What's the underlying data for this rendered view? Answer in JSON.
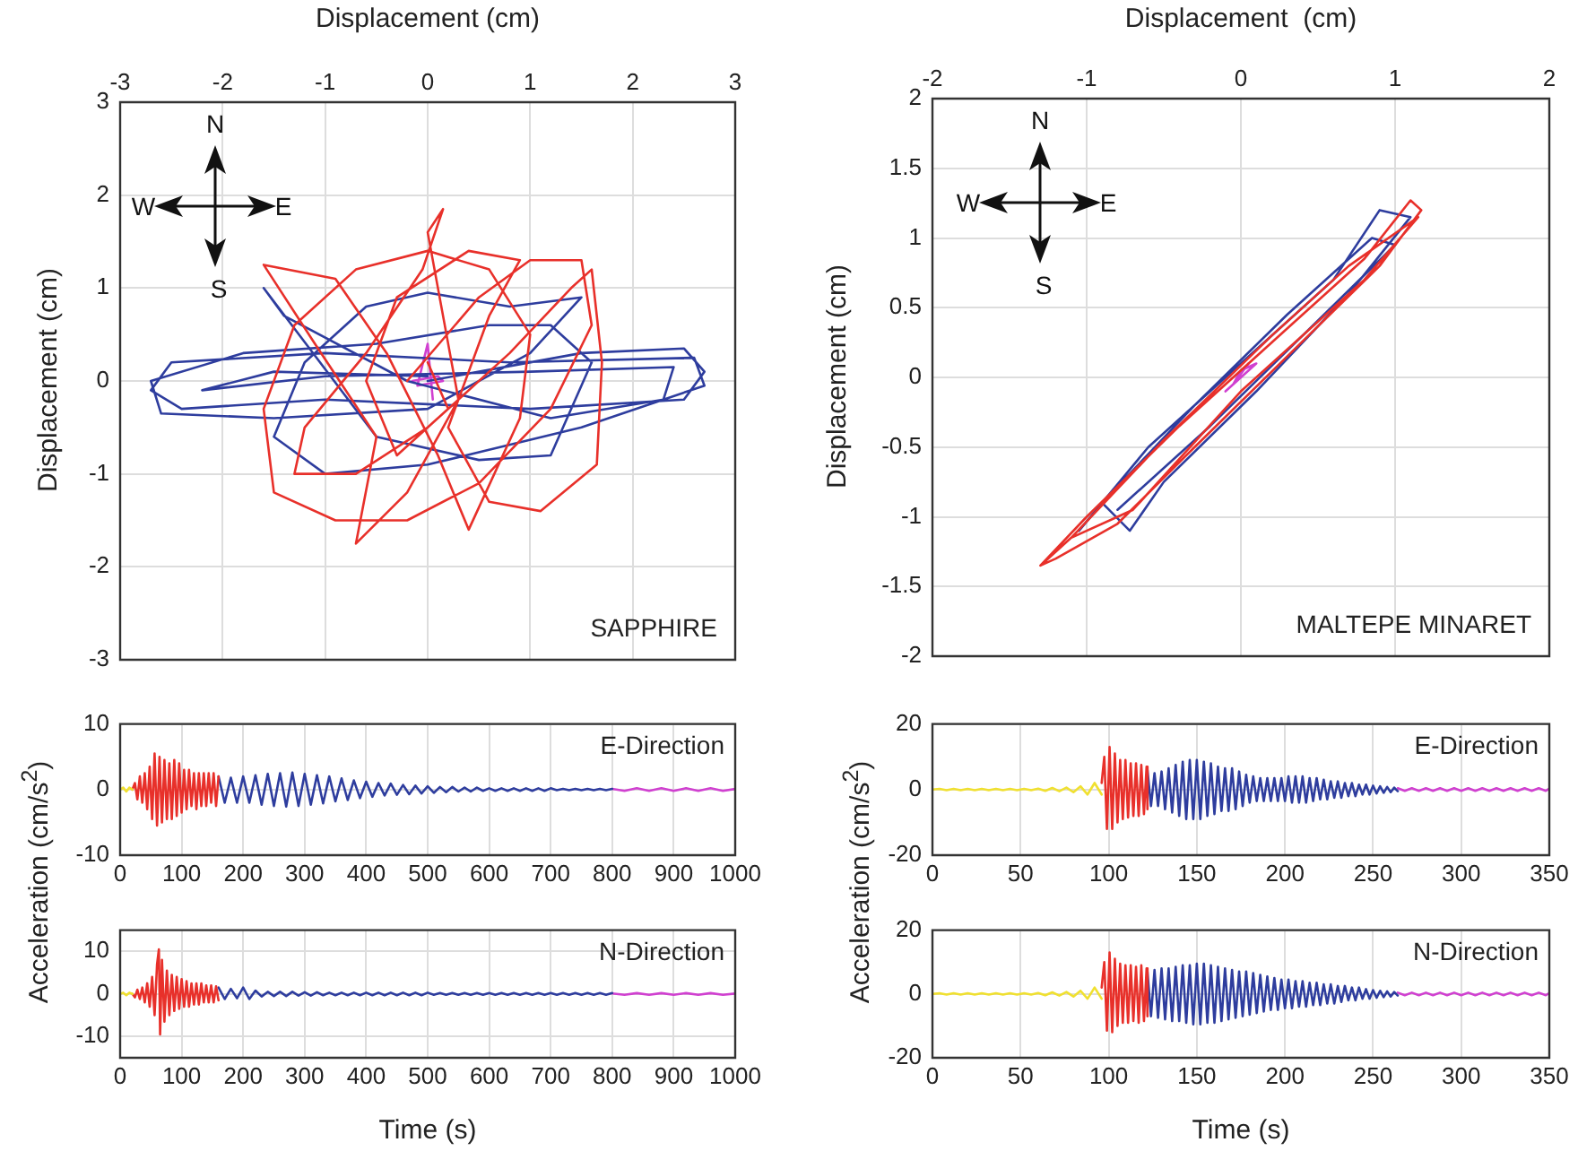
{
  "chart_data": [
    {
      "type": "line",
      "xlabel": "Displacement (cm)",
      "ylabel": "Displacement  (cm)",
      "xlim": [
        -3,
        3
      ],
      "xticks": [
        -3,
        -2,
        -1,
        0,
        1,
        2,
        3
      ],
      "ylim": [
        -3,
        3
      ],
      "yticks": [
        -3,
        -2,
        -1,
        0,
        1,
        2,
        3
      ],
      "grid": true,
      "annotations": [
        "SAPPHIRE",
        "N",
        "S",
        "W",
        "E"
      ],
      "series": [
        {
          "color": "#e8302a",
          "x": [
            -0.2,
            0.5,
            1.0,
            1.5,
            1.6,
            1.2,
            0.5,
            -0.2,
            -0.9,
            -1.5,
            -1.6,
            -1.3,
            -0.7,
            0.0,
            0.6,
            1.0,
            0.9,
            0.4,
            0.1,
            -0.4,
            -0.9,
            -1.6,
            -1.1,
            -0.5,
            -0.7,
            -0.2,
            0.3,
            0.0,
            0.15,
            -0.05,
            -0.6,
            -1.2,
            -1.3,
            -0.7,
            0.0,
            0.8,
            1.4,
            1.6,
            1.7,
            1.65,
            1.1,
            0.6,
            0.2,
            0.6,
            0.9,
            0.4,
            -0.3,
            -0.6,
            -0.3,
            0.2,
            0.0
          ],
          "values": [
            0.0,
            0.9,
            1.3,
            1.3,
            0.6,
            -0.3,
            -1.1,
            -1.5,
            -1.5,
            -1.2,
            -0.3,
            0.6,
            1.2,
            1.4,
            1.2,
            0.5,
            -0.4,
            -1.6,
            -0.8,
            0.3,
            1.1,
            1.25,
            0.4,
            -0.6,
            -1.75,
            -1.2,
            -0.2,
            1.6,
            1.85,
            1.2,
            0.3,
            -0.5,
            -1.0,
            -1.0,
            -0.5,
            0.3,
            1.0,
            1.2,
            0.2,
            -0.9,
            -1.4,
            -1.3,
            -0.5,
            0.7,
            1.3,
            1.4,
            0.9,
            0.0,
            -0.8,
            -0.3,
            0.2
          ]
        },
        {
          "color": "#2e3d9e",
          "x": [
            0,
            1.5,
            2.5,
            2.7,
            2.5,
            1.0,
            -1.0,
            -2.4,
            -2.7,
            -2.5,
            -1.0,
            0.8,
            2.6,
            2.7,
            1.5,
            0.0,
            -1.0,
            -1.5,
            -1.2,
            -0.6,
            0.0,
            0.8,
            1.5,
            1.0,
            0.0,
            -1.5,
            -2.6,
            -2.7,
            -1.8,
            -0.5,
            0.6,
            1.2,
            1.6,
            1.2,
            0.5,
            -0.5,
            -1.6,
            -1.4,
            -0.2,
            1.2,
            2.3,
            2.4,
            1.0,
            -1.0,
            -2.2,
            -1.5,
            0
          ],
          "values": [
            0,
            0.3,
            0.35,
            0.1,
            -0.2,
            -0.3,
            -0.2,
            -0.3,
            -0.1,
            0.2,
            0.3,
            0.2,
            0.25,
            -0.05,
            -0.5,
            -0.9,
            -1.0,
            -0.6,
            0.2,
            0.8,
            0.95,
            0.8,
            0.9,
            0.3,
            -0.3,
            -0.4,
            -0.35,
            0.0,
            0.3,
            0.4,
            0.6,
            0.6,
            0.2,
            -0.8,
            -0.85,
            -0.6,
            1.0,
            0.7,
            0.0,
            -0.4,
            -0.2,
            0.15,
            0.1,
            0.05,
            -0.1,
            0.1,
            0.05
          ]
        },
        {
          "color": "#d040d0",
          "x": [
            -0.15,
            0.1,
            0.15,
            -0.1,
            0.0,
            0.05
          ],
          "values": [
            0.0,
            0.05,
            0.0,
            -0.05,
            0.4,
            -0.2
          ]
        }
      ]
    },
    {
      "type": "line",
      "xlabel": "Displacement  (cm)",
      "ylabel": "Displacement  (cm)",
      "xlim": [
        -2,
        2
      ],
      "xticks": [
        -2,
        -1,
        0,
        1,
        2
      ],
      "ylim": [
        -2,
        2
      ],
      "yticks": [
        -2,
        -1.5,
        -1,
        -0.5,
        0,
        0.5,
        1,
        1.5,
        2
      ],
      "grid": true,
      "annotations": [
        "MALTEPE MINARET",
        "N",
        "S",
        "W",
        "E"
      ],
      "series": [
        {
          "color": "#e8302a",
          "x": [
            -1.3,
            -1.0,
            -0.4,
            0.3,
            0.8,
            1.1,
            1.17,
            0.9,
            0.3,
            -0.3,
            -0.8,
            -1.2,
            -1.3,
            -1.1,
            -0.5,
            0.2,
            0.7,
            1.15,
            0.8,
            0.0,
            -0.7,
            -1.1
          ],
          "values": [
            -1.35,
            -1.0,
            -0.35,
            0.35,
            0.85,
            1.27,
            1.2,
            0.8,
            0.15,
            -0.5,
            -1.05,
            -1.3,
            -1.35,
            -1.15,
            -0.45,
            0.3,
            0.8,
            1.15,
            0.7,
            -0.1,
            -0.95,
            -1.15
          ]
        },
        {
          "color": "#2e3d9e",
          "x": [
            -1.05,
            -0.6,
            0.0,
            0.6,
            0.9,
            1.1,
            0.7,
            0.1,
            -0.5,
            -0.72,
            -0.9,
            -0.3,
            0.3,
            0.85,
            1.0,
            0.4,
            -0.2,
            -0.8
          ],
          "values": [
            -1.1,
            -0.5,
            0.1,
            0.7,
            1.2,
            1.15,
            0.6,
            -0.1,
            -0.75,
            -1.1,
            -0.9,
            -0.2,
            0.45,
            1.0,
            0.95,
            0.3,
            -0.35,
            -0.95
          ]
        },
        {
          "color": "#d040d0",
          "x": [
            -0.1,
            0.1,
            0.0,
            -0.05,
            0.05
          ],
          "values": [
            -0.1,
            0.1,
            0.05,
            -0.05,
            0.1
          ]
        }
      ]
    },
    {
      "type": "line",
      "ylabel": "Acceleration (cm/s$^{2}$)",
      "xlim": [
        0,
        1000
      ],
      "xticks": [
        0,
        100,
        200,
        300,
        400,
        500,
        600,
        700,
        800,
        900,
        1000
      ],
      "ylim": [
        -10,
        10
      ],
      "yticks": [
        -10,
        0,
        10
      ],
      "grid": true,
      "annotations": [
        "E-Direction"
      ],
      "series": [
        {
          "color": "#f0e030",
          "x": [
            0,
            5,
            10,
            15,
            20
          ],
          "values": [
            0,
            0.3,
            -0.3,
            0.3,
            0
          ]
        },
        {
          "color": "#e8302a",
          "x": [
            20,
            24,
            28,
            32,
            36,
            40,
            44,
            48,
            52,
            56,
            60,
            64,
            68,
            72,
            76,
            80,
            84,
            88,
            92,
            96,
            100,
            104,
            108,
            112,
            116,
            120,
            124,
            128,
            132,
            136,
            140,
            144,
            148,
            152,
            156,
            160
          ],
          "values": [
            0,
            1,
            -1.5,
            2,
            -2,
            2.5,
            -3,
            3.5,
            -4.5,
            5.5,
            -5.5,
            5,
            -5,
            4.5,
            -4.5,
            4,
            -4.5,
            4.5,
            -4,
            4,
            -3.5,
            3,
            -3,
            3,
            -2.5,
            2.5,
            -3,
            2.5,
            -2.5,
            2.5,
            -2.5,
            2.5,
            -2,
            2.5,
            -2.5,
            2
          ]
        },
        {
          "color": "#2e3d9e",
          "x": [
            160,
            170,
            180,
            190,
            200,
            210,
            220,
            230,
            240,
            250,
            260,
            270,
            280,
            290,
            300,
            310,
            320,
            330,
            340,
            350,
            360,
            370,
            380,
            390,
            400,
            410,
            420,
            430,
            440,
            450,
            460,
            470,
            480,
            490,
            500,
            510,
            520,
            530,
            540,
            550,
            560,
            570,
            580,
            590,
            600,
            610,
            620,
            630,
            640,
            650,
            660,
            670,
            680,
            690,
            700,
            710,
            720,
            730,
            740,
            750,
            760,
            770,
            780,
            790,
            800
          ],
          "values": [
            2,
            -2,
            1.8,
            -2,
            2,
            -2,
            2.2,
            -2.3,
            2.4,
            -2.5,
            2.5,
            -2.6,
            2.6,
            -2.5,
            2.4,
            -2.3,
            2.2,
            -2.1,
            2,
            -1.8,
            1.7,
            -1.6,
            1.4,
            -1.3,
            1.2,
            -1.1,
            1,
            -0.9,
            0.9,
            -0.8,
            0.7,
            -0.7,
            0.6,
            -0.6,
            0.5,
            -0.5,
            0.4,
            -0.4,
            0.4,
            -0.3,
            0.3,
            -0.3,
            0.3,
            -0.2,
            0.2,
            -0.2,
            0.2,
            -0.2,
            0.2,
            -0.2,
            0.2,
            -0.2,
            0.2,
            -0.2,
            0.2,
            -0.1,
            0.1,
            -0.1,
            0.1,
            -0.1,
            0.1,
            -0.1,
            0.1,
            -0.1,
            0.1
          ]
        },
        {
          "color": "#d040d0",
          "x": [
            800,
            820,
            840,
            860,
            880,
            900,
            920,
            940,
            960,
            980,
            1000
          ],
          "values": [
            0.1,
            -0.2,
            0.2,
            -0.2,
            0.2,
            -0.2,
            0.2,
            -0.2,
            0.2,
            -0.2,
            0.1
          ]
        }
      ]
    },
    {
      "type": "line",
      "ylabel": "Acceleration (cm/s$^{2}$)",
      "xlim": [
        0,
        350
      ],
      "xticks": [
        0,
        50,
        100,
        150,
        200,
        250,
        300,
        350
      ],
      "ylim": [
        -20,
        20
      ],
      "yticks": [
        -20,
        0,
        20
      ],
      "grid": true,
      "annotations": [
        "E-Direction"
      ],
      "series": [
        {
          "color": "#f0e030",
          "x": [
            0,
            4,
            8,
            12,
            16,
            20,
            24,
            28,
            32,
            36,
            40,
            44,
            48,
            52,
            56,
            60,
            64,
            68,
            72,
            76,
            80,
            84,
            88,
            92,
            96
          ],
          "values": [
            0,
            0.2,
            -0.2,
            0.2,
            -0.2,
            0.2,
            -0.2,
            0.2,
            -0.2,
            0.2,
            -0.2,
            0.2,
            -0.2,
            0.2,
            -0.2,
            0.3,
            -0.4,
            0.5,
            -0.5,
            0.6,
            -0.8,
            1,
            -1.5,
            2,
            -1.5
          ]
        },
        {
          "color": "#e8302a",
          "x": [
            96,
            97.5,
            99,
            100.5,
            102,
            103.5,
            105,
            106.5,
            108,
            109.5,
            111,
            112.5,
            114,
            115.5,
            117,
            118.5,
            120,
            121.5,
            122
          ],
          "values": [
            2,
            10,
            -12,
            13,
            -12,
            11,
            -10,
            9,
            -9,
            9,
            -8.5,
            8,
            -8,
            8,
            -8,
            7.5,
            -7.5,
            7,
            -6
          ]
        },
        {
          "color": "#2e3d9e",
          "x": [
            122,
            124,
            126,
            128,
            130,
            132,
            134,
            136,
            138,
            140,
            142,
            144,
            146,
            148,
            150,
            152,
            154,
            156,
            158,
            160,
            162,
            164,
            166,
            168,
            170,
            172,
            174,
            176,
            178,
            180,
            182,
            184,
            186,
            188,
            190,
            192,
            194,
            196,
            198,
            200,
            202,
            204,
            206,
            208,
            210,
            212,
            214,
            216,
            218,
            220,
            222,
            224,
            226,
            228,
            230,
            232,
            234,
            236,
            238,
            240,
            242,
            244,
            246,
            248,
            250,
            252,
            254,
            256,
            258,
            260,
            262,
            264
          ],
          "values": [
            6,
            -5,
            5,
            -5,
            5.5,
            -6,
            6.5,
            -7,
            7.5,
            -8,
            8.5,
            -9,
            9,
            -9,
            9,
            -9,
            8.5,
            -8,
            8,
            -7.5,
            7,
            -6.5,
            6.5,
            -6.5,
            6.5,
            -6,
            5.5,
            -5,
            4.5,
            -4,
            4,
            -3.5,
            3.5,
            -3.5,
            3.5,
            -3.5,
            3.5,
            -3.5,
            3.5,
            -3.5,
            4,
            -4,
            4,
            -4,
            4,
            -4,
            3.5,
            -3.5,
            3.5,
            -3,
            3,
            -3,
            2.5,
            -2.5,
            2.5,
            -2.5,
            2,
            -2,
            2,
            -2,
            1.5,
            -1.5,
            1.5,
            -1.5,
            1.2,
            -1.2,
            1,
            -1,
            0.8,
            -0.8,
            0.6,
            -0.5
          ]
        },
        {
          "color": "#d040d0",
          "x": [
            264,
            268,
            272,
            276,
            280,
            284,
            288,
            292,
            296,
            300,
            304,
            308,
            312,
            316,
            320,
            324,
            328,
            332,
            336,
            340,
            344,
            348,
            350
          ],
          "values": [
            0.4,
            -0.4,
            0.4,
            -0.4,
            0.4,
            -0.4,
            0.4,
            -0.4,
            0.4,
            -0.4,
            0.4,
            -0.4,
            0.4,
            -0.4,
            0.4,
            -0.4,
            0.4,
            -0.4,
            0.4,
            -0.4,
            0.4,
            -0.4,
            0.3
          ]
        }
      ]
    },
    {
      "type": "line",
      "xlabel": "Time (s)",
      "xlim": [
        0,
        1000
      ],
      "xticks": [
        0,
        100,
        200,
        300,
        400,
        500,
        600,
        700,
        800,
        900,
        1000
      ],
      "ylim": [
        -15,
        15
      ],
      "yticks": [
        -10,
        0,
        10
      ],
      "grid": true,
      "annotations": [
        "N-Direction"
      ],
      "series": [
        {
          "color": "#f0e030",
          "x": [
            0,
            5,
            10,
            15,
            20
          ],
          "values": [
            0,
            0.3,
            -0.3,
            0.3,
            0
          ]
        },
        {
          "color": "#e8302a",
          "x": [
            20,
            24,
            28,
            32,
            36,
            40,
            44,
            48,
            52,
            56,
            60,
            63,
            65,
            68,
            72,
            76,
            80,
            84,
            88,
            92,
            96,
            100,
            104,
            108,
            112,
            116,
            120,
            124,
            128,
            132,
            136,
            140,
            144,
            148,
            152,
            156,
            160
          ],
          "values": [
            0,
            -0.8,
            1,
            -1.2,
            1.5,
            -2,
            2.5,
            -3,
            4,
            -5,
            7,
            10.5,
            -9.5,
            8,
            -6.5,
            5.5,
            -5,
            4.5,
            -4,
            4,
            -3.5,
            3.5,
            -3,
            3,
            -3,
            2.5,
            -2.5,
            2.5,
            -2.5,
            2.5,
            -2,
            2,
            -2,
            2,
            -2,
            1.8,
            -1.5
          ]
        },
        {
          "color": "#2e3d9e",
          "x": [
            160,
            170,
            180,
            190,
            200,
            210,
            220,
            230,
            240,
            250,
            260,
            270,
            280,
            290,
            300,
            310,
            320,
            330,
            340,
            350,
            360,
            370,
            380,
            390,
            400,
            410,
            420,
            430,
            440,
            450,
            460,
            470,
            480,
            490,
            500,
            510,
            520,
            530,
            540,
            550,
            560,
            570,
            580,
            590,
            600,
            610,
            620,
            630,
            640,
            650,
            660,
            670,
            680,
            690,
            700,
            710,
            720,
            730,
            740,
            750,
            760,
            770,
            780,
            790,
            800
          ],
          "values": [
            1.5,
            -1.2,
            1.2,
            -1,
            1.5,
            -1.2,
            0.8,
            -0.6,
            0.5,
            -0.5,
            0.5,
            -0.5,
            0.5,
            -0.4,
            0.4,
            -0.4,
            0.4,
            -0.3,
            0.3,
            -0.3,
            0.3,
            -0.3,
            0.3,
            -0.3,
            0.3,
            -0.3,
            0.3,
            -0.3,
            0.3,
            -0.3,
            0.3,
            -0.3,
            0.3,
            -0.3,
            0.3,
            -0.2,
            0.2,
            -0.2,
            0.2,
            -0.2,
            0.2,
            -0.2,
            0.2,
            -0.2,
            0.2,
            -0.2,
            0.2,
            -0.2,
            0.2,
            -0.2,
            0.2,
            -0.2,
            0.2,
            -0.2,
            0.2,
            -0.2,
            0.2,
            -0.2,
            0.2,
            -0.2,
            0.2,
            -0.2,
            0.2,
            -0.2,
            0.2
          ]
        },
        {
          "color": "#d040d0",
          "x": [
            800,
            820,
            840,
            860,
            880,
            900,
            920,
            940,
            960,
            980,
            1000
          ],
          "values": [
            0.1,
            -0.2,
            0.2,
            -0.2,
            0.2,
            -0.2,
            0.2,
            -0.2,
            0.2,
            -0.2,
            0.1
          ]
        }
      ]
    },
    {
      "type": "line",
      "xlabel": "Time (s)",
      "xlim": [
        0,
        350
      ],
      "xticks": [
        0,
        50,
        100,
        150,
        200,
        250,
        300,
        350
      ],
      "ylim": [
        -20,
        20
      ],
      "yticks": [
        -20,
        0,
        20
      ],
      "grid": true,
      "annotations": [
        "N-Direction"
      ],
      "series": [
        {
          "color": "#f0e030",
          "x": [
            0,
            4,
            8,
            12,
            16,
            20,
            24,
            28,
            32,
            36,
            40,
            44,
            48,
            52,
            56,
            60,
            64,
            68,
            72,
            76,
            80,
            84,
            88,
            92,
            96
          ],
          "values": [
            0,
            0.2,
            -0.2,
            0.2,
            -0.2,
            0.2,
            -0.2,
            0.2,
            -0.2,
            0.2,
            -0.2,
            0.2,
            -0.2,
            0.2,
            -0.2,
            0.3,
            -0.4,
            0.5,
            -0.5,
            0.6,
            -0.8,
            1,
            -1.5,
            2,
            -1.5
          ]
        },
        {
          "color": "#e8302a",
          "x": [
            96,
            97.5,
            99,
            100.5,
            102,
            103.5,
            105,
            106.5,
            108,
            109.5,
            111,
            112.5,
            114,
            115.5,
            117,
            118.5,
            120,
            121.5,
            122
          ],
          "values": [
            2,
            10,
            -11.5,
            13,
            -12,
            11,
            -10,
            9.5,
            -9,
            9,
            -9,
            9,
            -8.5,
            8.5,
            -9,
            9,
            -8.5,
            8,
            -7
          ]
        },
        {
          "color": "#2e3d9e",
          "x": [
            122,
            124,
            126,
            128,
            130,
            132,
            134,
            136,
            138,
            140,
            142,
            144,
            146,
            148,
            150,
            152,
            154,
            156,
            158,
            160,
            162,
            164,
            166,
            168,
            170,
            172,
            174,
            176,
            178,
            180,
            182,
            184,
            186,
            188,
            190,
            192,
            194,
            196,
            198,
            200,
            202,
            204,
            206,
            208,
            210,
            212,
            214,
            216,
            218,
            220,
            222,
            224,
            226,
            228,
            230,
            232,
            234,
            236,
            238,
            240,
            242,
            244,
            246,
            248,
            250,
            252,
            254,
            256,
            258,
            260,
            262,
            264
          ],
          "values": [
            7,
            -7,
            7.5,
            -7.5,
            8,
            -8,
            8,
            -8.5,
            8.5,
            -8.5,
            9,
            -9,
            9,
            -9.5,
            9.5,
            -9.5,
            9.5,
            -9,
            9,
            -9,
            8.5,
            -8.5,
            8,
            -8,
            7.5,
            -7.5,
            7,
            -7,
            7,
            -6.5,
            6.5,
            -6,
            6,
            -5.5,
            5.5,
            -5,
            5,
            -5,
            4.5,
            -4.5,
            4.5,
            -4.5,
            4,
            -4,
            4,
            -4,
            3.5,
            -3.5,
            3.5,
            -3.5,
            3,
            -3,
            3,
            -3,
            2.5,
            -2.5,
            2.5,
            -2,
            2,
            -2,
            2,
            -1.5,
            1.5,
            -1.5,
            1.2,
            -1.2,
            1,
            -1,
            0.8,
            -0.8,
            0.6,
            -0.5
          ]
        },
        {
          "color": "#d040d0",
          "x": [
            264,
            268,
            272,
            276,
            280,
            284,
            288,
            292,
            296,
            300,
            304,
            308,
            312,
            316,
            320,
            324,
            328,
            332,
            336,
            340,
            344,
            348,
            350
          ],
          "values": [
            0.4,
            -0.4,
            0.4,
            -0.4,
            0.4,
            -0.4,
            0.4,
            -0.4,
            0.4,
            -0.4,
            0.4,
            -0.4,
            0.4,
            -0.4,
            0.4,
            -0.4,
            0.4,
            -0.4,
            0.4,
            -0.4,
            0.4,
            -0.4,
            0.3
          ]
        }
      ]
    }
  ]
}
